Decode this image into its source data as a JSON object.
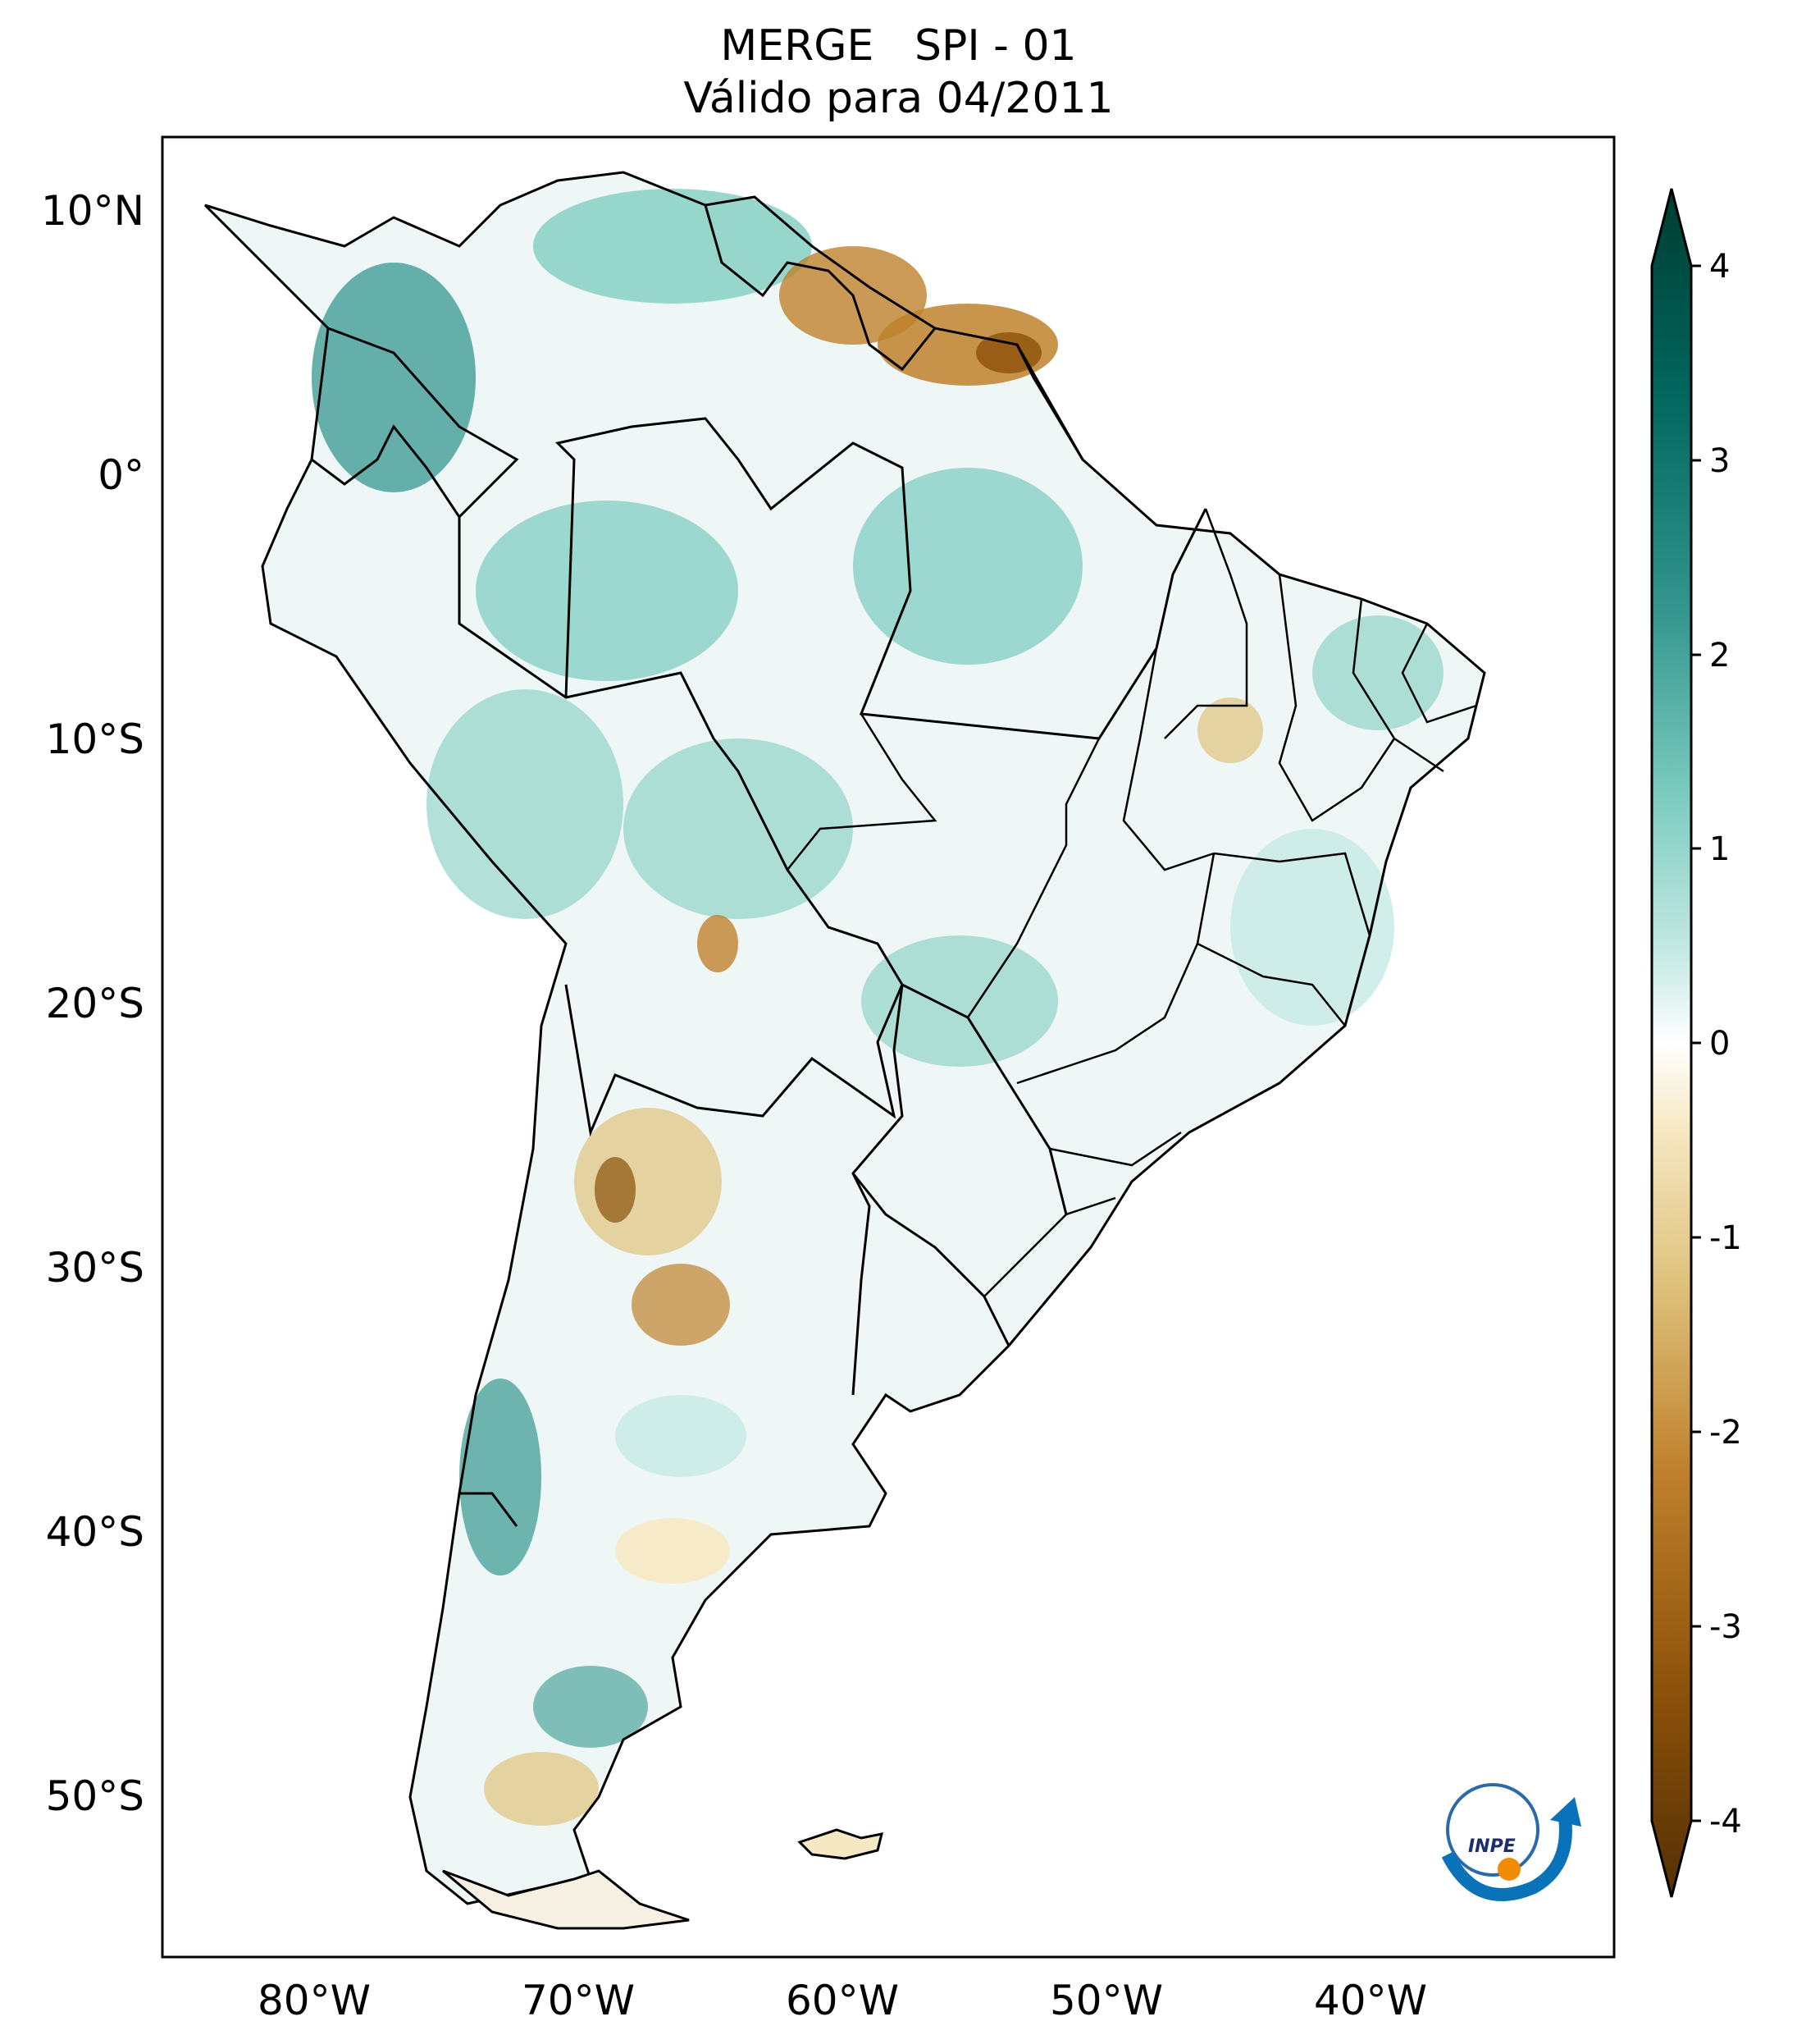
{
  "title": {
    "line1": "MERGE   SPI - 01",
    "line2": "Válido para 04/2011"
  },
  "axes": {
    "lat_labels": [
      "10°N",
      "0°",
      "10°S",
      "20°S",
      "30°S",
      "40°S",
      "50°S"
    ],
    "lon_labels": [
      "80°W",
      "70°W",
      "60°W",
      "50°W",
      "40°W"
    ]
  },
  "colorbar": {
    "ticks": [
      "4",
      "3",
      "2",
      "1",
      "0",
      "-1",
      "-2",
      "-3",
      "-4"
    ],
    "range": [
      -4,
      4
    ],
    "colors": {
      "dry_extreme": "#543005",
      "dry_strong": "#8c510a",
      "dry_moderate": "#bf812d",
      "dry_mild": "#dfc27d",
      "dry_slight": "#f6e8c3",
      "neutral": "#ffffff",
      "wet_slight": "#c7eae5",
      "wet_mild": "#80cdc1",
      "wet_moderate": "#35978f",
      "wet_strong": "#01665e",
      "wet_extreme": "#003c30"
    }
  },
  "logo": {
    "text": "INPE"
  }
}
